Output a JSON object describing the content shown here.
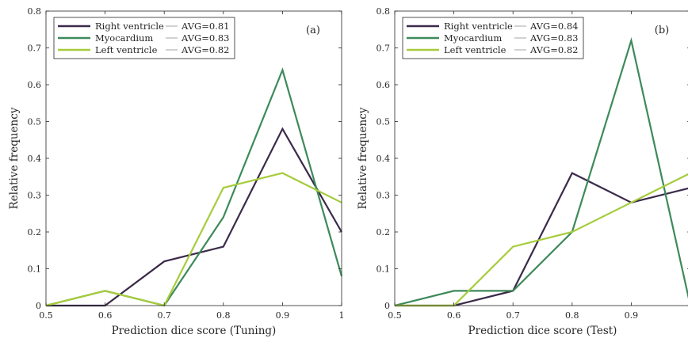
{
  "colors": {
    "right_ventricle": "#3b2a4a",
    "myocardium": "#3d8a5a",
    "left_ventricle": "#a6cc3a",
    "axis": "#262626",
    "avg_line": "#9a9a9a"
  },
  "chart_data": [
    {
      "type": "line",
      "panel_label": "(a)",
      "xlabel": "Prediction dice score (Tuning)",
      "ylabel": "Relative frequency",
      "xlim": [
        0.5,
        1.0
      ],
      "ylim": [
        0,
        0.8
      ],
      "xticks": [
        0.5,
        0.6,
        0.7,
        0.8,
        0.9,
        1.0
      ],
      "xtick_labels": [
        "0.5",
        "0.6",
        "0.7",
        "0.8",
        "0.9",
        "1"
      ],
      "yticks": [
        0,
        0.1,
        0.2,
        0.3,
        0.4,
        0.5,
        0.6,
        0.7,
        0.8
      ],
      "ytick_labels": [
        "0",
        "0.1",
        "0.2",
        "0.3",
        "0.4",
        "0.5",
        "0.6",
        "0.7",
        "0.8"
      ],
      "grid": false,
      "legend_position": "top-left",
      "x": [
        0.5,
        0.6,
        0.7,
        0.8,
        0.9,
        1.0
      ],
      "series": [
        {
          "name": "Right ventricle",
          "avg_label": "AVG=0.81",
          "color_key": "right_ventricle",
          "values": [
            0,
            0,
            0.12,
            0.16,
            0.48,
            0.2
          ]
        },
        {
          "name": "Myocardium",
          "avg_label": "AVG=0.83",
          "color_key": "myocardium",
          "values": [
            0,
            0.04,
            0,
            0.24,
            0.64,
            0.08
          ]
        },
        {
          "name": "Left ventricle",
          "avg_label": "AVG=0.82",
          "color_key": "left_ventricle",
          "values": [
            0,
            0.04,
            0,
            0.32,
            0.36,
            0.28
          ]
        }
      ]
    },
    {
      "type": "line",
      "panel_label": "(b)",
      "xlabel": "Prediction dice score (Test)",
      "ylabel": "Relative frequency",
      "xlim": [
        0.5,
        1.0
      ],
      "ylim": [
        0,
        0.8
      ],
      "xticks": [
        0.5,
        0.6,
        0.7,
        0.8,
        0.9,
        1.0
      ],
      "xtick_labels": [
        "0.5",
        "0.6",
        "0.7",
        "0.8",
        "0.9",
        "1"
      ],
      "yticks": [
        0,
        0.1,
        0.2,
        0.3,
        0.4,
        0.5,
        0.6,
        0.7,
        0.8
      ],
      "ytick_labels": [
        "0",
        "0.1",
        "0.2",
        "0.3",
        "0.4",
        "0.5",
        "0.6",
        "0.7",
        "0.8"
      ],
      "grid": false,
      "legend_position": "top-left",
      "x": [
        0.5,
        0.6,
        0.7,
        0.8,
        0.9,
        1.0
      ],
      "series": [
        {
          "name": "Right ventricle",
          "avg_label": "AVG=0.84",
          "color_key": "right_ventricle",
          "values": [
            0,
            0,
            0.04,
            0.36,
            0.28,
            0.32
          ]
        },
        {
          "name": "Myocardium",
          "avg_label": "AVG=0.83",
          "color_key": "myocardium",
          "values": [
            0,
            0.04,
            0.04,
            0.2,
            0.72,
            0
          ]
        },
        {
          "name": "Left ventricle",
          "avg_label": "AVG=0.82",
          "color_key": "left_ventricle",
          "values": [
            0,
            0,
            0.16,
            0.2,
            0.28,
            0.36
          ]
        }
      ]
    }
  ]
}
